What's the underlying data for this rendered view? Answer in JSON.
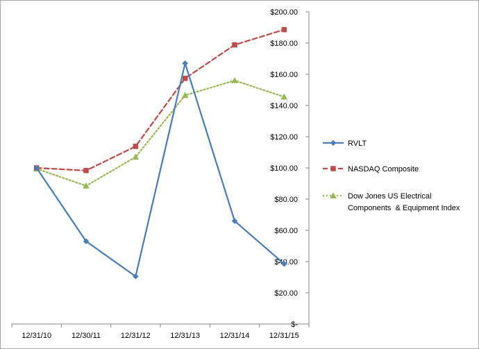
{
  "chart_data": {
    "type": "line",
    "title": "",
    "xlabel": "",
    "ylabel": "",
    "categories": [
      "12/31/10",
      "12/30/11",
      "12/31/12",
      "12/31/13",
      "12/31/14",
      "12/31/15"
    ],
    "ylim": [
      0,
      200
    ],
    "y_ticks": [
      0,
      20,
      40,
      60,
      80,
      100,
      120,
      140,
      160,
      180,
      200
    ],
    "y_tick_labels": [
      "$-",
      "$20.00",
      "$40.00",
      "$60.00",
      "$80.00",
      "$100.00",
      "$120.00",
      "$140.00",
      "$160.00",
      "$180.00",
      "$200.00"
    ],
    "y_axis_side": "right",
    "grid": false,
    "legend_position": "right",
    "series": [
      {
        "name": "RVLT",
        "values": [
          100,
          53,
          30.5,
          167,
          66,
          38.5
        ],
        "color": "#4a7ebb",
        "dash": "solid",
        "marker": "diamond"
      },
      {
        "name": "NASDAQ Composite",
        "values": [
          100,
          98.3,
          113.8,
          157.4,
          178.8,
          188.6
        ],
        "color": "#be4b48",
        "dash": "dashed",
        "marker": "square"
      },
      {
        "name": "Dow Jones US Electrical Components  & Equipment Index",
        "legend_lines": [
          "Dow Jones US Electrical",
          "Components  & Equipment Index"
        ],
        "values": [
          99.5,
          88.5,
          107,
          146.5,
          156,
          145.5
        ],
        "color": "#98b954",
        "dash": "dotted",
        "marker": "triangle"
      }
    ]
  }
}
